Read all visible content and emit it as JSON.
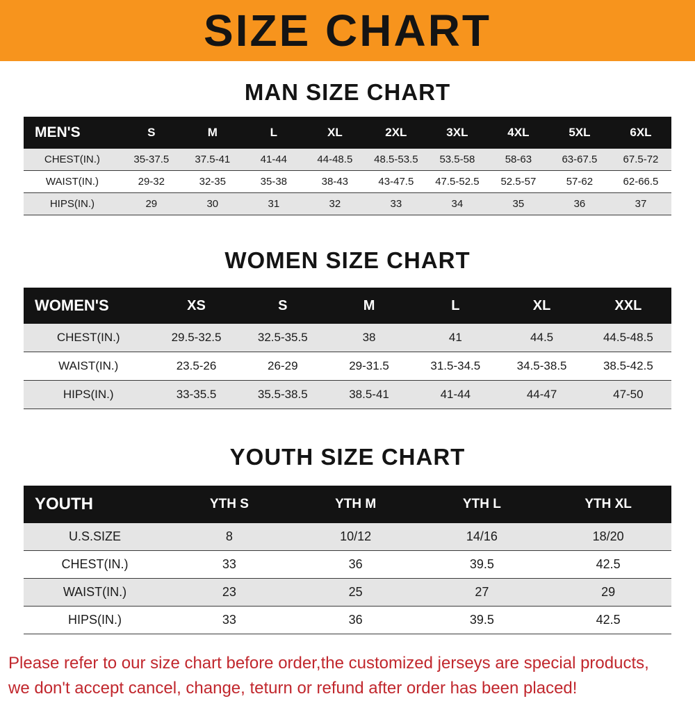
{
  "banner": {
    "title": "SIZE CHART",
    "bg_color": "#f7941d"
  },
  "colors": {
    "table_header_bg": "#131313",
    "row_stripe": "#e5e5e5",
    "footer_text": "#c1272d"
  },
  "chart_data": [
    {
      "type": "table",
      "title": "MAN SIZE CHART",
      "columns": [
        "MEN'S",
        "S",
        "M",
        "L",
        "XL",
        "2XL",
        "3XL",
        "4XL",
        "5XL",
        "6XL"
      ],
      "rows": [
        [
          "CHEST(IN.)",
          "35-37.5",
          "37.5-41",
          "41-44",
          "44-48.5",
          "48.5-53.5",
          "53.5-58",
          "58-63",
          "63-67.5",
          "67.5-72"
        ],
        [
          "WAIST(IN.)",
          "29-32",
          "32-35",
          "35-38",
          "38-43",
          "43-47.5",
          "47.5-52.5",
          "52.5-57",
          "57-62",
          "62-66.5"
        ],
        [
          "HIPS(IN.)",
          "29",
          "30",
          "31",
          "32",
          "33",
          "34",
          "35",
          "36",
          "37"
        ]
      ]
    },
    {
      "type": "table",
      "title": "WOMEN SIZE CHART",
      "columns": [
        "WOMEN'S",
        "XS",
        "S",
        "M",
        "L",
        "XL",
        "XXL"
      ],
      "rows": [
        [
          "CHEST(IN.)",
          "29.5-32.5",
          "32.5-35.5",
          "38",
          "41",
          "44.5",
          "44.5-48.5"
        ],
        [
          "WAIST(IN.)",
          "23.5-26",
          "26-29",
          "29-31.5",
          "31.5-34.5",
          "34.5-38.5",
          "38.5-42.5"
        ],
        [
          "HIPS(IN.)",
          "33-35.5",
          "35.5-38.5",
          "38.5-41",
          "41-44",
          "44-47",
          "47-50"
        ]
      ]
    },
    {
      "type": "table",
      "title": "YOUTH SIZE CHART",
      "columns": [
        "YOUTH",
        "YTH S",
        "YTH M",
        "YTH L",
        "YTH XL"
      ],
      "rows": [
        [
          "U.S.SIZE",
          "8",
          "10/12",
          "14/16",
          "18/20"
        ],
        [
          "CHEST(IN.)",
          "33",
          "36",
          "39.5",
          "42.5"
        ],
        [
          "WAIST(IN.)",
          "23",
          "25",
          "27",
          "29"
        ],
        [
          "HIPS(IN.)",
          "33",
          "36",
          "39.5",
          "42.5"
        ]
      ]
    }
  ],
  "footer": {
    "line1": "Please refer to our size chart before order,the customized jerseys are special products,",
    "line2": "we don't accept cancel, change, teturn or refund after order has been placed!"
  }
}
